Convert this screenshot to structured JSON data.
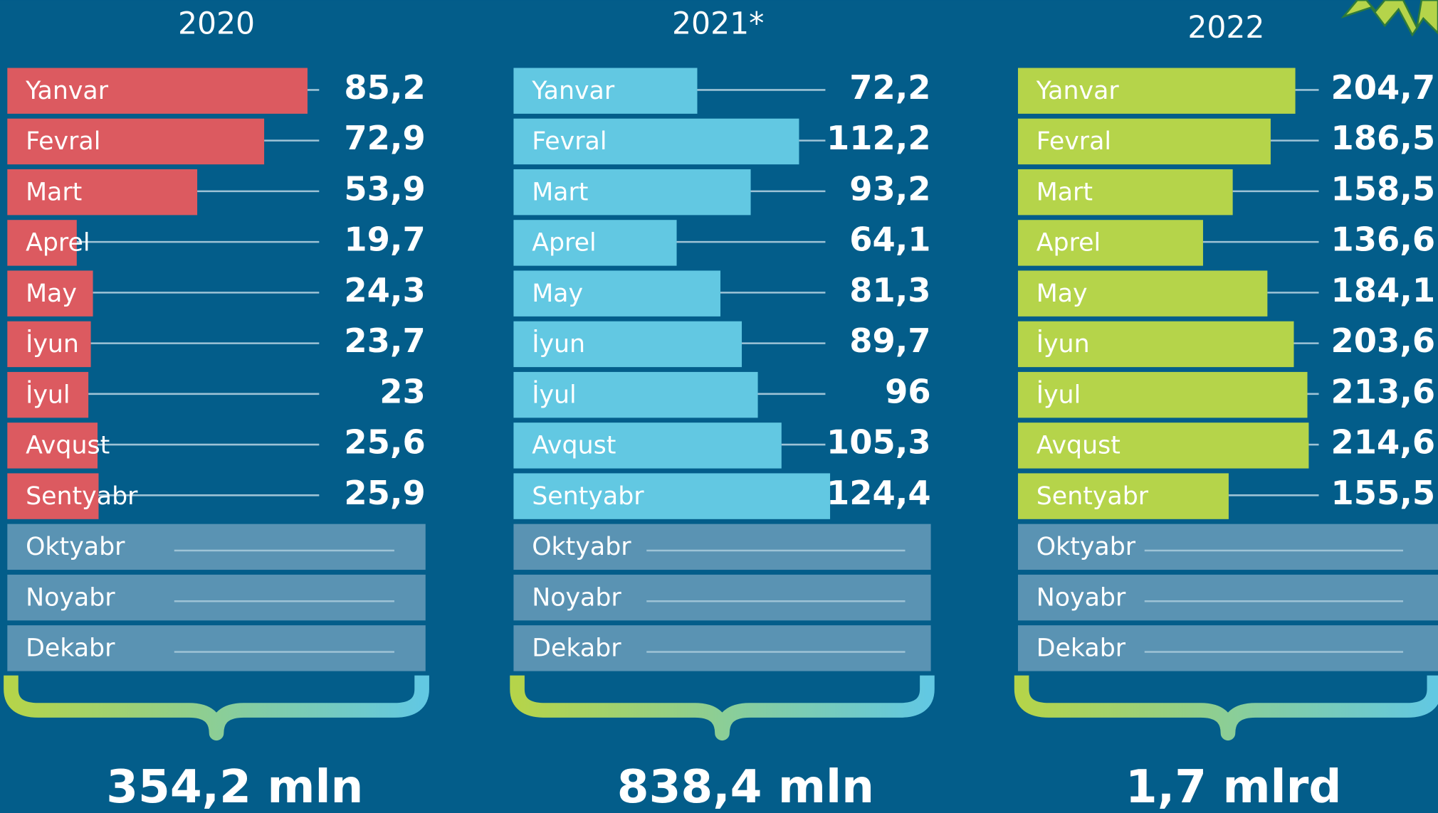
{
  "chart_data": [
    {
      "type": "hbar",
      "title": "2020",
      "color": "#dc5a60",
      "xlim": [
        0,
        118.7
      ],
      "categories": [
        "Yanvar",
        "Fevral",
        "Mart",
        "Aprel",
        "May",
        "İyun",
        "İyul",
        "Avqust",
        "Sentyabr",
        "Oktyabr",
        "Noyabr",
        "Dekabr"
      ],
      "values": [
        85.2,
        72.9,
        53.9,
        19.7,
        24.3,
        23.7,
        23,
        25.6,
        25.9,
        null,
        null,
        null
      ],
      "value_labels": [
        "85,2",
        "72,9",
        "53,9",
        "19,7",
        "24,3",
        "23,7",
        "23",
        "25,6",
        "25,9",
        null,
        null,
        null
      ],
      "annotation": "354,2 mln"
    },
    {
      "type": "hbar",
      "title": "2021*",
      "color": "#62c8e2",
      "xlim": [
        0,
        164
      ],
      "categories": [
        "Yanvar",
        "Fevral",
        "Mart",
        "Aprel",
        "May",
        "İyun",
        "İyul",
        "Avqust",
        "Sentyabr",
        "Oktyabr",
        "Noyabr",
        "Dekabr"
      ],
      "values": [
        72.2,
        112.2,
        93.2,
        64.1,
        81.3,
        89.7,
        96,
        105.3,
        124.4,
        null,
        null,
        null
      ],
      "value_labels": [
        "72,2",
        "112,2",
        "93,2",
        "64,1",
        "81,3",
        "89,7",
        "96",
        "105,3",
        "124,4",
        null,
        null,
        null
      ],
      "annotation": "838,4 mln"
    },
    {
      "type": "hbar",
      "title": "2022",
      "color": "#b5d44a",
      "xlim": [
        0,
        310
      ],
      "categories": [
        "Yanvar",
        "Fevral",
        "Mart",
        "Aprel",
        "May",
        "İyun",
        "İyul",
        "Avqust",
        "Sentyabr",
        "Oktyabr",
        "Noyabr",
        "Dekabr"
      ],
      "values": [
        204.7,
        186.5,
        158.5,
        136.6,
        184.1,
        203.6,
        213.6,
        214.6,
        155.5,
        null,
        null,
        null
      ],
      "value_labels": [
        "204,7",
        "186,5",
        "158,5",
        "136,6",
        "184,1",
        "203,6",
        "213,6",
        "214,6",
        "155,5",
        null,
        null,
        null
      ],
      "annotation": "1,7 mlrd"
    }
  ]
}
